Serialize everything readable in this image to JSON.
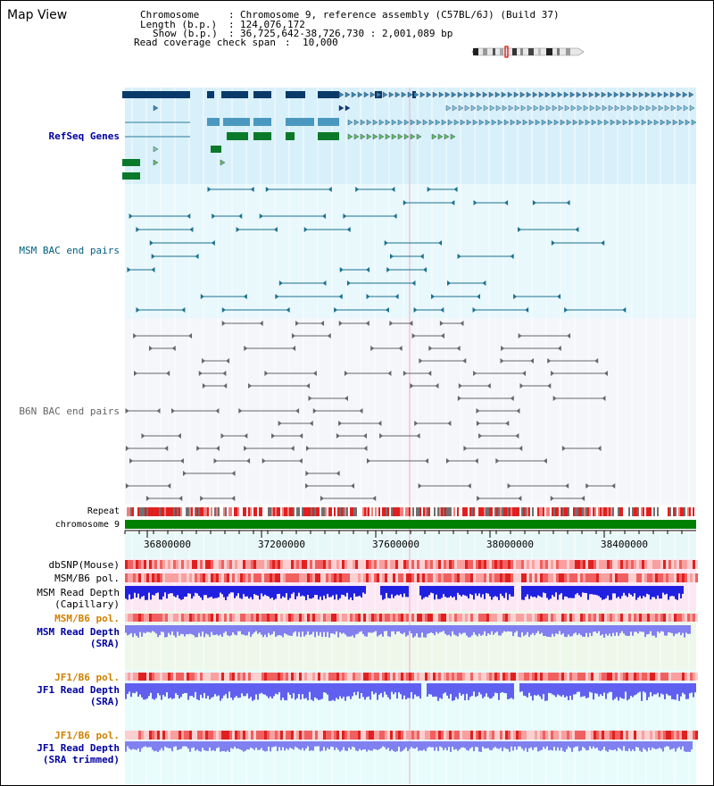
{
  "window": {
    "title": "Map View"
  },
  "header": {
    "chromosome_label": "Chromosome",
    "chromosome_value": "Chromosome 9, reference assembly (C57BL/6J) (Build 37)",
    "length_label": "Length (b.p.)",
    "length_value": "124,076,172",
    "show_label": "Show (b.p.)",
    "show_value": "36,725,642-38,726,730 : 2,001,089 bp",
    "coverage_label": "Read coverage check span",
    "coverage_value": "10,000"
  },
  "tracks": {
    "refseq": "RefSeq Genes",
    "msm_bac": "MSM BAC end pairs",
    "b6n_bac": "B6N BAC end pairs",
    "repeat": "Repeat",
    "chromosome": "chromosome 9",
    "dbsnp": "dbSNP(Mouse)",
    "msm_b6_pol_1": "MSM/B6 pol.",
    "msm_read_depth_cap_1": "MSM Read Depth",
    "msm_read_depth_cap_2": "(Capillary)",
    "msm_b6_pol_2": "MSM/B6 pol.",
    "msm_read_depth_sra_1": "MSM Read Depth",
    "msm_read_depth_sra_2": "(SRA)",
    "jf1_b6_pol_1": "JF1/B6 pol.",
    "jf1_read_depth_sra_1": "JF1 Read Depth",
    "jf1_read_depth_sra_2": "(SRA)",
    "jf1_b6_pol_2": "JF1/B6 pol.",
    "jf1_read_depth_trim_1": "JF1 Read Depth",
    "jf1_read_depth_trim_2": "(SRA trimmed)"
  },
  "axis": {
    "ticks": [
      "36800000",
      "37200000",
      "37600000",
      "38000000",
      "38400000"
    ]
  },
  "colors": {
    "refseq_band": "#d8f0fa",
    "msm_band": "#e8f8fc",
    "b6n_band": "#f4f6fa",
    "chrom_bar": "#008000",
    "ruler_band": "#e8f8f8",
    "dbsnp": "#f06060",
    "depth_cap": "#2020e0",
    "depth_sra": "#8080f0",
    "pink_band": "#fce8f4",
    "green_band": "#eef8ea",
    "cyan_band": "#e8fcfc"
  },
  "icons": [
    "chromosome-ideogram-icon"
  ]
}
